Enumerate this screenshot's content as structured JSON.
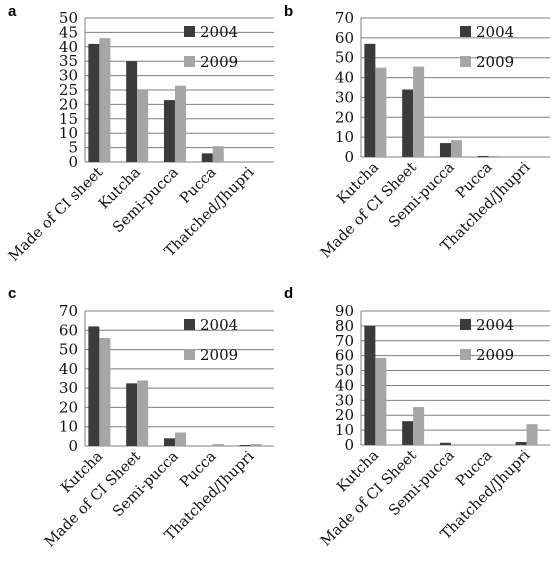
{
  "colors": {
    "s2004": "#3b3b3b",
    "s2009": "#a6a6a6",
    "grid": "#7f7f7f"
  },
  "chart_data": [
    {
      "panel": "a",
      "type": "bar",
      "categories": [
        "Made of CI sheet",
        "Kutcha",
        "Semi-pucca",
        "Pucca",
        "Thatched/Jhupri"
      ],
      "series": [
        {
          "name": "2004",
          "values": [
            41,
            35,
            21.5,
            3,
            0
          ]
        },
        {
          "name": "2009",
          "values": [
            43,
            25,
            26.5,
            5.5,
            0
          ]
        }
      ],
      "ylim": [
        0,
        50
      ],
      "yticks": [
        0,
        5,
        10,
        15,
        20,
        25,
        30,
        35,
        40,
        45,
        50
      ],
      "grid": true,
      "legend": "top-right"
    },
    {
      "panel": "b",
      "type": "bar",
      "categories": [
        "Kutcha",
        "Made of CI Sheet",
        "Semi-pucca",
        "Pucca",
        "Thatched/Jhupri"
      ],
      "series": [
        {
          "name": "2004",
          "values": [
            57,
            34,
            7,
            0.5,
            0
          ]
        },
        {
          "name": "2009",
          "values": [
            45,
            45.5,
            8.5,
            0.5,
            0
          ]
        }
      ],
      "ylim": [
        0,
        70
      ],
      "yticks": [
        0,
        10,
        20,
        30,
        40,
        50,
        60,
        70
      ],
      "grid": true,
      "legend": "top-right"
    },
    {
      "panel": "c",
      "type": "bar",
      "categories": [
        "Kutcha",
        "Made of CI Sheet",
        "Semi-pucca",
        "Pucca",
        "Thatched/Jhupri"
      ],
      "series": [
        {
          "name": "2004",
          "values": [
            62,
            32.5,
            4,
            0,
            0.5
          ]
        },
        {
          "name": "2009",
          "values": [
            56,
            34,
            7,
            1,
            1
          ]
        }
      ],
      "ylim": [
        0,
        70
      ],
      "yticks": [
        0,
        10,
        20,
        30,
        40,
        50,
        60,
        70
      ],
      "grid": true,
      "legend": "top-right"
    },
    {
      "panel": "d",
      "type": "bar",
      "categories": [
        "Kutcha",
        "Made of CI Sheet",
        "Semi-pucca",
        "Pucca",
        "Thatched/Jhupri"
      ],
      "series": [
        {
          "name": "2004",
          "values": [
            80,
            16,
            1.5,
            0,
            2
          ]
        },
        {
          "name": "2009",
          "values": [
            58.5,
            25.5,
            0,
            0.5,
            14
          ]
        }
      ],
      "ylim": [
        0,
        90
      ],
      "yticks": [
        0,
        10,
        20,
        30,
        40,
        50,
        60,
        70,
        80,
        90
      ],
      "grid": true,
      "legend": "top-right"
    }
  ]
}
